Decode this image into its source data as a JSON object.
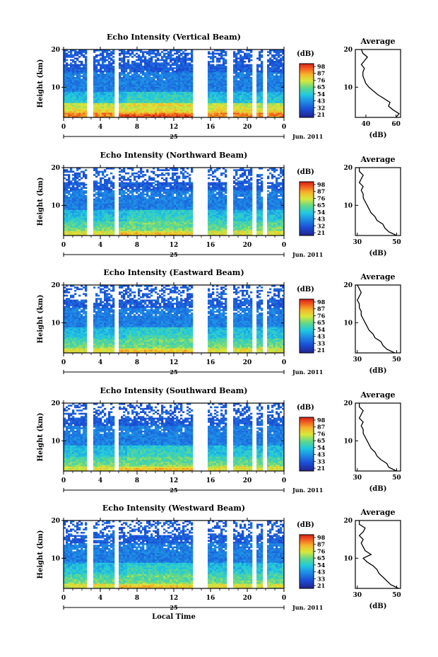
{
  "chart_data": [
    {
      "type": "heatmap",
      "title": "Echo Intensity (Vertical Beam)",
      "ylabel": "Height (km)",
      "xticks": [
        "0",
        "4",
        "8",
        "12",
        "16",
        "20",
        "0"
      ],
      "xlim": [
        0,
        24
      ],
      "yticks": [
        "10",
        "20"
      ],
      "ylim": [
        2,
        20
      ],
      "date_day": "25",
      "date_month": "Jun. 2011",
      "colorbar": {
        "unit": "(dB)",
        "ticks": [
          "98",
          "87",
          "76",
          "65",
          "54",
          "43",
          "32",
          "21"
        ]
      },
      "profile": {
        "title": "Average",
        "xlabel": "(dB)",
        "xticks": [
          "40",
          "60"
        ],
        "xlim": [
          33,
          63
        ],
        "yticks": [
          "10",
          "20"
        ],
        "heights": [
          2,
          3,
          4,
          5,
          6,
          7,
          8,
          9,
          10,
          11,
          12,
          13,
          14,
          15,
          16,
          17,
          18,
          19,
          20
        ],
        "values": [
          60,
          62,
          58,
          55,
          56,
          52,
          48,
          45,
          42,
          40,
          39,
          38,
          38,
          39,
          37,
          39,
          41,
          38,
          37
        ]
      }
    },
    {
      "type": "heatmap",
      "title": "Echo Intensity (Northward Beam)",
      "ylabel": "Height (km)",
      "xticks": [
        "0",
        "4",
        "8",
        "12",
        "16",
        "20",
        "0"
      ],
      "xlim": [
        0,
        24
      ],
      "yticks": [
        "10",
        "20"
      ],
      "ylim": [
        2,
        20
      ],
      "date_day": "25",
      "date_month": "Jun. 2011",
      "colorbar": {
        "unit": "(dB)",
        "ticks": [
          "98",
          "87",
          "76",
          "65",
          "54",
          "43",
          "32",
          "21"
        ]
      },
      "profile": {
        "title": "Average",
        "xlabel": "(dB)",
        "xticks": [
          "30",
          "50"
        ],
        "xlim": [
          29,
          52
        ],
        "yticks": [
          "10",
          "20"
        ],
        "heights": [
          2,
          3,
          4,
          5,
          6,
          7,
          8,
          9,
          10,
          11,
          12,
          13,
          14,
          15,
          16,
          17,
          18,
          19,
          20
        ],
        "values": [
          50,
          46,
          44,
          43,
          40,
          39,
          37,
          36,
          35,
          34,
          33,
          33,
          32,
          33,
          31,
          32,
          33,
          31,
          31
        ]
      }
    },
    {
      "type": "heatmap",
      "title": "Echo Intensity (Eastward Beam)",
      "ylabel": "Height (km)",
      "xticks": [
        "0",
        "4",
        "8",
        "12",
        "16",
        "20",
        "0"
      ],
      "xlim": [
        0,
        24
      ],
      "yticks": [
        "10",
        "20"
      ],
      "ylim": [
        2,
        20
      ],
      "date_day": "25",
      "date_month": "Jun. 2011",
      "colorbar": {
        "unit": "(dB)",
        "ticks": [
          "98",
          "87",
          "76",
          "65",
          "54",
          "43",
          "33",
          "21"
        ]
      },
      "profile": {
        "title": "Average",
        "xlabel": "(dB)",
        "xticks": [
          "30",
          "50"
        ],
        "xlim": [
          29,
          52
        ],
        "yticks": [
          "10",
          "20"
        ],
        "heights": [
          2,
          3,
          4,
          5,
          6,
          7,
          8,
          9,
          10,
          11,
          12,
          13,
          14,
          15,
          16,
          17,
          18,
          19,
          20
        ],
        "values": [
          49,
          45,
          43,
          42,
          39,
          38,
          36,
          35,
          34,
          33,
          32,
          32,
          31,
          31,
          30,
          31,
          32,
          31,
          30
        ]
      }
    },
    {
      "type": "heatmap",
      "title": "Echo Intensity (Southward Beam)",
      "ylabel": "Height (km)",
      "xticks": [
        "0",
        "4",
        "8",
        "12",
        "16",
        "20",
        "0"
      ],
      "xlim": [
        0,
        24
      ],
      "yticks": [
        "10",
        "20"
      ],
      "ylim": [
        2,
        20
      ],
      "date_day": "25",
      "date_month": "Jun. 2011",
      "colorbar": {
        "unit": "(dB)",
        "ticks": [
          "98",
          "87",
          "76",
          "65",
          "54",
          "43",
          "33",
          "21"
        ]
      },
      "profile": {
        "title": "Average",
        "xlabel": "(dB)",
        "xticks": [
          "30",
          "50"
        ],
        "xlim": [
          29,
          52
        ],
        "yticks": [
          "10",
          "20"
        ],
        "heights": [
          2,
          3,
          4,
          5,
          6,
          7,
          8,
          9,
          10,
          11,
          12,
          13,
          14,
          15,
          16,
          17,
          18,
          19,
          20
        ],
        "values": [
          50,
          46,
          45,
          42,
          40,
          39,
          37,
          36,
          35,
          34,
          33,
          33,
          32,
          33,
          31,
          32,
          33,
          31,
          31
        ]
      }
    },
    {
      "type": "heatmap",
      "title": "Echo Intensity (Westward Beam)",
      "ylabel": "Height (km)",
      "xticks": [
        "0",
        "4",
        "8",
        "12",
        "16",
        "20",
        "0"
      ],
      "xlim": [
        0,
        24
      ],
      "yticks": [
        "10",
        "20"
      ],
      "ylim": [
        2,
        20
      ],
      "date_day": "25",
      "date_month": "Jun. 2011",
      "xlabel": "Local Time",
      "colorbar": {
        "unit": "(dB)",
        "ticks": [
          "98",
          "87",
          "76",
          "65",
          "54",
          "43",
          "33",
          "21"
        ]
      },
      "profile": {
        "title": "Average",
        "xlabel": "(dB)",
        "xticks": [
          "30",
          "50"
        ],
        "xlim": [
          29,
          52
        ],
        "yticks": [
          "10",
          "20"
        ],
        "heights": [
          2,
          3,
          4,
          5,
          6,
          7,
          8,
          9,
          10,
          11,
          12,
          13,
          14,
          15,
          16,
          17,
          18,
          19,
          20
        ],
        "values": [
          51,
          47,
          45,
          43,
          41,
          40,
          38,
          35,
          33,
          37,
          34,
          33,
          32,
          33,
          31,
          33,
          34,
          31,
          31
        ]
      }
    }
  ],
  "gap_hours": [
    [
      2.6,
      3.2
    ],
    [
      5.6,
      6.1
    ],
    [
      14.0,
      15.6
    ],
    [
      17.8,
      18.4
    ],
    [
      20.5,
      21.0
    ],
    [
      21.8,
      22.2
    ]
  ]
}
